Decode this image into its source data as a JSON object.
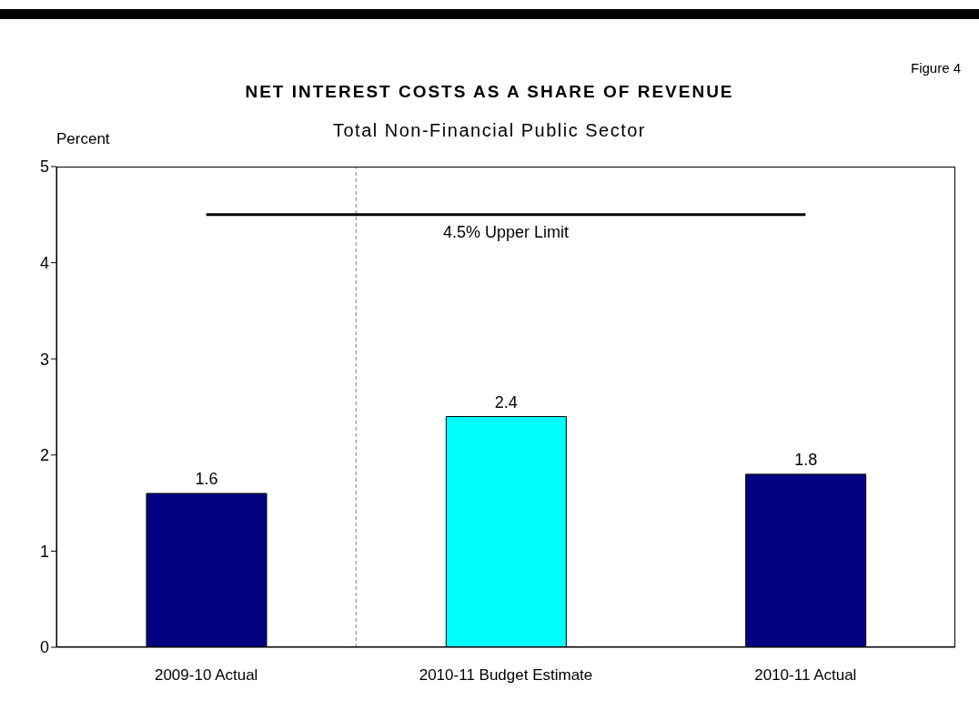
{
  "chart_data": {
    "type": "bar",
    "title": "NET INTEREST COSTS AS A SHARE OF REVENUE",
    "subtitle": "Total Non-Financial Public Sector",
    "ylabel": "Percent",
    "annotations": [
      "Figure 4"
    ],
    "categories": [
      "2009-10 Actual",
      "2010-11 Budget Estimate",
      "2010-11 Actual"
    ],
    "values": [
      1.6,
      2.4,
      1.8
    ],
    "colors": [
      "#000080",
      "#00ffff",
      "#000080"
    ],
    "ylim": [
      0,
      5
    ],
    "yticks": [
      0,
      1,
      2,
      3,
      4,
      5
    ],
    "grid": false,
    "data_labels": true,
    "ref_lines": [
      {
        "axis": "y",
        "value": 4.5,
        "label": "4.5% Upper Limit",
        "color": "#000000",
        "line_style": "solid"
      }
    ]
  }
}
